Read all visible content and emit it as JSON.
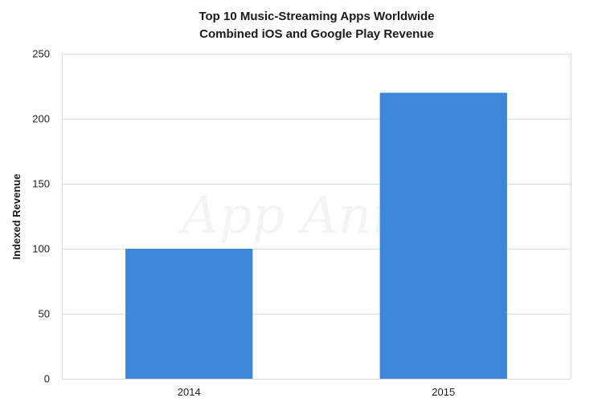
{
  "chart_data": {
    "type": "bar",
    "title": "Top 10 Music-Streaming Apps Worldwide",
    "subtitle": "Combined iOS and Google Play Revenue",
    "xlabel": "",
    "ylabel": "Indexed Revenue",
    "categories": [
      "2014",
      "2015"
    ],
    "values": [
      100,
      220
    ],
    "ylim": [
      0,
      250
    ],
    "yticks": [
      0,
      50,
      100,
      150,
      200,
      250
    ],
    "grid": true,
    "bar_color": "#3d88d6",
    "watermark": "App Annie"
  }
}
